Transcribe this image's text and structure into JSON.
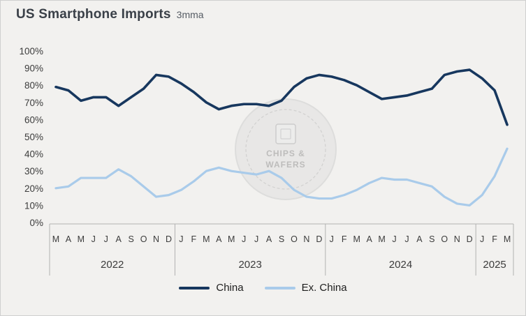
{
  "header": {
    "title": "US Smartphone Imports",
    "subtitle": "3mma"
  },
  "watermark": {
    "text": "CHIPS & WAFERS",
    "line1": "CHIPS &",
    "line2": "WAFERS"
  },
  "chart_data": {
    "type": "line",
    "title": "US Smartphone Imports",
    "subtitle": "3mma",
    "ylim": [
      0,
      100
    ],
    "grid": false,
    "legend_position": "bottom",
    "yticks": [
      "0%",
      "10%",
      "20%",
      "30%",
      "40%",
      "50%",
      "60%",
      "70%",
      "80%",
      "90%",
      "100%"
    ],
    "groups": [
      {
        "year": "2022",
        "months": [
          "M",
          "A",
          "M",
          "J",
          "J",
          "A",
          "S",
          "O",
          "N",
          "D"
        ]
      },
      {
        "year": "2023",
        "months": [
          "J",
          "F",
          "M",
          "A",
          "M",
          "J",
          "J",
          "A",
          "S",
          "O",
          "N",
          "D"
        ]
      },
      {
        "year": "2024",
        "months": [
          "J",
          "F",
          "M",
          "A",
          "M",
          "J",
          "J",
          "A",
          "S",
          "O",
          "N",
          "D"
        ]
      },
      {
        "year": "2025",
        "months": [
          "J",
          "F",
          "M"
        ]
      }
    ],
    "series": [
      {
        "name": "China",
        "color": "#17375e",
        "width": 3.6,
        "values": [
          79,
          77,
          71,
          73,
          73,
          68,
          73,
          78,
          86,
          85,
          81,
          76,
          70,
          66,
          68,
          69,
          69,
          68,
          71,
          79,
          84,
          86,
          85,
          83,
          80,
          76,
          72,
          73,
          74,
          76,
          78,
          86,
          88,
          89,
          84,
          77,
          57
        ]
      },
      {
        "name": "Ex. China",
        "color": "#a9cbea",
        "width": 3.2,
        "values": [
          20,
          21,
          26,
          26,
          26,
          31,
          27,
          21,
          15,
          16,
          19,
          24,
          30,
          32,
          30,
          29,
          28,
          30,
          26,
          19,
          15,
          14,
          14,
          16,
          19,
          23,
          26,
          25,
          25,
          23,
          21,
          15,
          11,
          10,
          16,
          27,
          43
        ]
      }
    ],
    "axis_color": "#b2b2b2",
    "label_color": "#3c3c3c"
  }
}
